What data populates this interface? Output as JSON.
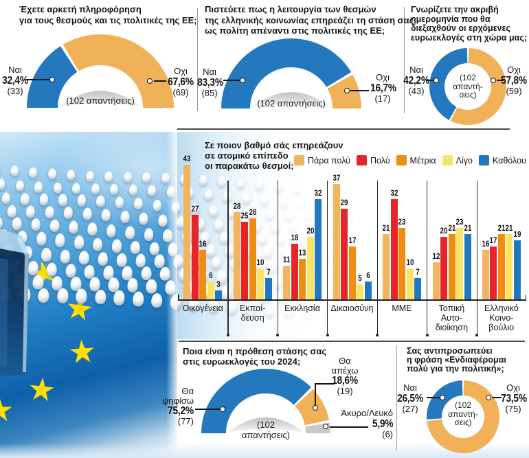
{
  "accent_colors": {
    "blue": "#2478BE",
    "orange": "#F1B158",
    "red": "#E8242B",
    "dark_orange": "#EF8D13",
    "yellow": "#FBE364",
    "gray": "#C8C8C8"
  },
  "icons": {
    "star": "★"
  },
  "panels": {
    "q1": {
      "title_lines": [
        "Έχετε αρκετή πληροφόρηση",
        "για τους θεσμούς και τις πολιτικές της ΕΕ;"
      ],
      "note": "(102 απαντήσεις)",
      "yes": {
        "name": "Ναι",
        "pct": "32,4%",
        "count": "(33)"
      },
      "no": {
        "name": "Οχι",
        "pct": "67,6%",
        "count": "(69)"
      }
    },
    "q2": {
      "title_lines": [
        "Πιστεύετε πως η λειτουργία των θεσμών",
        "της ελληνικής κοινωνίας επηρεάζει τη στάση σας",
        "ως πολίτη απέναντι στις πολιτικές της ΕΕ;"
      ],
      "note": "(102 απαντήσεις)",
      "yes": {
        "name": "Ναι",
        "pct": "83,3%",
        "count": "(85)"
      },
      "no": {
        "name": "Οχι",
        "pct": "16,7%",
        "count": "(17)"
      }
    },
    "q3": {
      "title_lines": [
        "Γνωρίζετε την ακριβή",
        "ημερομηνία που θα",
        "διεξαχθούν οι ερχόμενες",
        "ευρωεκλογές στη χώρα μας;"
      ],
      "note_lines": [
        "(102",
        "απαντή-",
        "σεις)"
      ],
      "yes": {
        "name": "Ναι",
        "pct": "42,2%",
        "count": "(43)"
      },
      "no": {
        "name": "Οχι",
        "pct": "57,8%",
        "count": "(59)"
      }
    },
    "influence": {
      "title_lines": [
        "Σε ποιον βαθμό σάς επηρεάζουν",
        "σε ατομικό επίπεδο",
        "οι παρακάτω θεσμοί;"
      ]
    },
    "q4": {
      "title_lines": [
        "Ποια είναι η πρόθεση στάσης σας",
        "στις ευρωεκλογές του 2024;"
      ],
      "note_lines": [
        "(102",
        "απαντήσεις)"
      ],
      "vote": {
        "name_lines": [
          "Θα",
          "ψηφίσω"
        ],
        "pct": "75,2%",
        "count": "(77)"
      },
      "abstain": {
        "name_lines": [
          "Θα",
          "απέχω"
        ],
        "pct": "18,6%",
        "count": "(19)"
      },
      "invalid": {
        "name": "Άκυρο/Λευκό",
        "pct": "5,9%",
        "count": "(6)"
      }
    },
    "q5": {
      "title_lines": [
        "Σας αντιπροσωπεύει",
        "η φράση «Ενδιαφέρομαι",
        "πολύ για την πολιτική»;"
      ],
      "note_lines": [
        "(102",
        "απαντή-",
        "σεις)"
      ],
      "yes": {
        "name": "Ναι",
        "pct": "26,5%",
        "count": "(27)"
      },
      "no": {
        "name": "Οχι",
        "pct": "73,5%",
        "count": "(75)"
      }
    }
  },
  "chart_data": [
    {
      "id": "q1",
      "type": "pie",
      "variant": "semi-donut",
      "title": "Έχετε αρκετή πληροφόρηση για τους θεσμούς και τις πολιτικές της ΕΕ;",
      "respondents": 102,
      "note": "(102 απαντήσεις)",
      "slices": [
        {
          "label": "Ναι",
          "pct": 32.4,
          "count": 33,
          "color": "#2478BE"
        },
        {
          "label": "Οχι",
          "pct": 67.6,
          "count": 69,
          "color": "#F1B158"
        }
      ]
    },
    {
      "id": "q2",
      "type": "pie",
      "variant": "semi-donut",
      "title": "Πιστεύετε πως η λειτουργία των θεσμών της ελληνικής κοινωνίας επηρεάζει τη στάση σας ως πολίτη απέναντι στις πολιτικές της ΕΕ;",
      "respondents": 102,
      "note": "(102 απαντήσεις)",
      "slices": [
        {
          "label": "Ναι",
          "pct": 83.3,
          "count": 85,
          "color": "#2478BE"
        },
        {
          "label": "Οχι",
          "pct": 16.7,
          "count": 17,
          "color": "#F1B158"
        }
      ]
    },
    {
      "id": "q3",
      "type": "pie",
      "variant": "donut",
      "title": "Γνωρίζετε την ακριβή ημερομηνία που θα διεξαχθούν οι ερχόμενες ευρωεκλογές στη χώρα μας;",
      "respondents": 102,
      "note": "(102 απαντήσεις)",
      "slices": [
        {
          "label": "Ναι",
          "pct": 42.2,
          "count": 43,
          "color": "#2478BE"
        },
        {
          "label": "Οχι",
          "pct": 57.8,
          "count": 59,
          "color": "#F1B158"
        }
      ]
    },
    {
      "id": "q4",
      "type": "pie",
      "variant": "semi-donut",
      "title": "Ποια είναι η πρόθεση στάσης σας στις ευρωεκλογές του 2024;",
      "respondents": 102,
      "note": "(102 απαντήσεις)",
      "slices": [
        {
          "label": "Θα ψηφίσω",
          "pct": 75.2,
          "count": 77,
          "color": "#2478BE"
        },
        {
          "label": "Θα απέχω",
          "pct": 18.6,
          "count": 19,
          "color": "#F1B158"
        },
        {
          "label": "Άκυρο/Λευκό",
          "pct": 5.9,
          "count": 6,
          "color": "#C8C8C8"
        }
      ]
    },
    {
      "id": "q5",
      "type": "pie",
      "variant": "donut",
      "title": "Σας αντιπροσωπεύει η φράση «Ενδιαφέρομαι πολύ για την πολιτική»;",
      "respondents": 102,
      "note": "(102 απαντήσεις)",
      "slices": [
        {
          "label": "Ναι",
          "pct": 26.5,
          "count": 27,
          "color": "#2478BE"
        },
        {
          "label": "Οχι",
          "pct": 73.5,
          "count": 75,
          "color": "#F1B158"
        }
      ]
    },
    {
      "id": "influence",
      "type": "bar",
      "title": "Σε ποιον βαθμό σάς επηρεάζουν σε ατομικό επίπεδο οι παρακάτω θεσμοί;",
      "categories": [
        "Οικογένεια",
        "Εκπαίδευση",
        "Εκκλησία",
        "Δικαιοσύνη",
        "ΜΜΕ",
        "Τοπική Αυτοδιοίκηση",
        "Ελληνικό Κοινοβούλιο"
      ],
      "category_label_lines": [
        [
          "Οικογένεια"
        ],
        [
          "Εκπαί-",
          "δευση"
        ],
        [
          "Εκκλησία"
        ],
        [
          "Δικαιοσύνη"
        ],
        [
          "ΜΜΕ"
        ],
        [
          "Τοπική",
          "Αυτο-",
          "διοίκηση"
        ],
        [
          "Ελληνικό",
          "Κοινο-",
          "βούλιο"
        ]
      ],
      "series": [
        {
          "name": "Πάρα πολύ",
          "color": "#F2B45C",
          "values": [
            43,
            28,
            11,
            37,
            21,
            12,
            16
          ]
        },
        {
          "name": "Πολύ",
          "color": "#E8242B",
          "values": [
            27,
            25,
            18,
            29,
            32,
            20,
            17
          ]
        },
        {
          "name": "Μέτρια",
          "color": "#EF8D13",
          "values": [
            16,
            26,
            13,
            17,
            23,
            21,
            21
          ]
        },
        {
          "name": "Λίγο",
          "color": "#FBE364",
          "values": [
            6,
            10,
            20,
            5,
            10,
            23,
            21
          ]
        },
        {
          "name": "Καθόλου",
          "color": "#1F78C0",
          "values": [
            3,
            7,
            32,
            6,
            7,
            21,
            19
          ]
        }
      ],
      "ylim": [
        0,
        43
      ],
      "value_labels": true,
      "grid": false,
      "legend_position": "top"
    }
  ]
}
